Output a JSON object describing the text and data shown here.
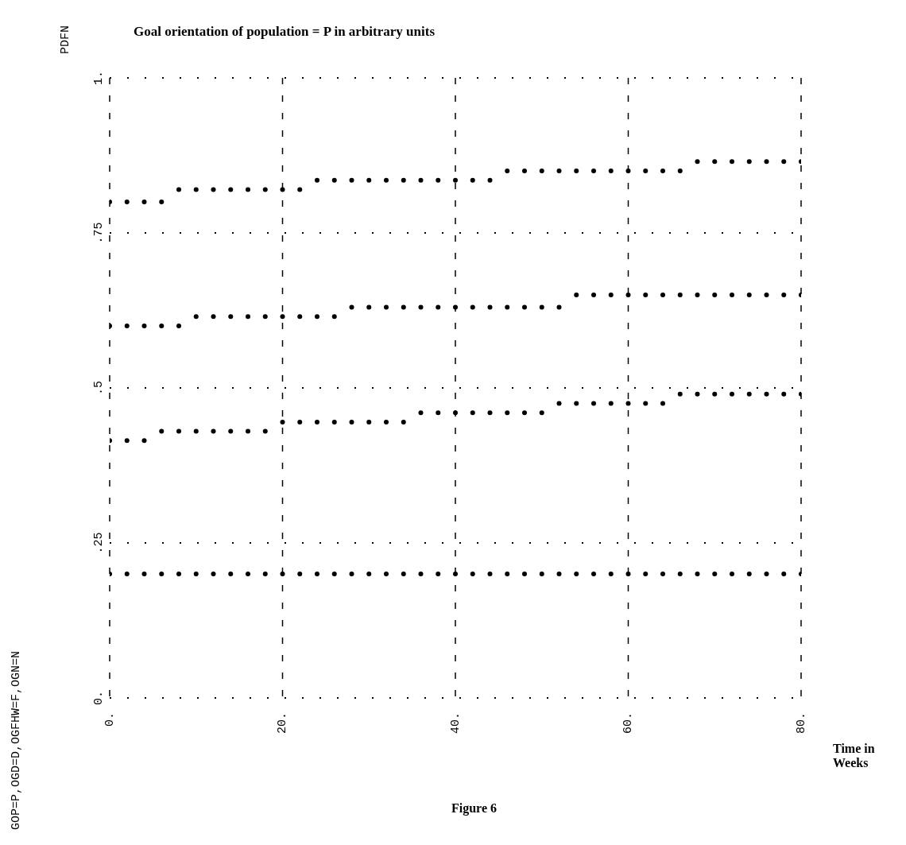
{
  "chart_data": {
    "type": "scatter",
    "title": "Goal orientation of population = P  in arbitrary units",
    "ylabel": "PDFN",
    "xlabel": "Time in Weeks",
    "annotations": [
      "GOP=P,OGD=D,OGFHW=F,OGN=N",
      "Figure 6"
    ],
    "x": [
      0,
      2,
      4,
      6,
      8,
      10,
      12,
      14,
      16,
      18,
      20,
      22,
      24,
      26,
      28,
      30,
      32,
      34,
      36,
      38,
      40,
      42,
      44,
      46,
      48,
      50,
      52,
      54,
      56,
      58,
      60,
      62,
      64,
      66,
      68,
      70,
      72,
      74,
      76,
      78,
      80
    ],
    "series": [
      {
        "color": "#000000",
        "values": [
          0.8,
          0.8,
          0.8,
          0.8,
          0.82,
          0.82,
          0.82,
          0.82,
          0.82,
          0.82,
          0.82,
          0.82,
          0.835,
          0.835,
          0.835,
          0.835,
          0.835,
          0.835,
          0.835,
          0.835,
          0.835,
          0.835,
          0.835,
          0.85,
          0.85,
          0.85,
          0.85,
          0.85,
          0.85,
          0.85,
          0.85,
          0.85,
          0.85,
          0.85,
          0.865,
          0.865,
          0.865,
          0.865,
          0.865,
          0.865,
          0.865
        ]
      },
      {
        "color": "#000000",
        "values": [
          0.6,
          0.6,
          0.6,
          0.6,
          0.6,
          0.615,
          0.615,
          0.615,
          0.615,
          0.615,
          0.615,
          0.615,
          0.615,
          0.615,
          0.63,
          0.63,
          0.63,
          0.63,
          0.63,
          0.63,
          0.63,
          0.63,
          0.63,
          0.63,
          0.63,
          0.63,
          0.63,
          0.65,
          0.65,
          0.65,
          0.65,
          0.65,
          0.65,
          0.65,
          0.65,
          0.65,
          0.65,
          0.65,
          0.65,
          0.65,
          0.65
        ]
      },
      {
        "color": "#000000",
        "values": [
          0.415,
          0.415,
          0.415,
          0.43,
          0.43,
          0.43,
          0.43,
          0.43,
          0.43,
          0.43,
          0.445,
          0.445,
          0.445,
          0.445,
          0.445,
          0.445,
          0.445,
          0.445,
          0.46,
          0.46,
          0.46,
          0.46,
          0.46,
          0.46,
          0.46,
          0.46,
          0.475,
          0.475,
          0.475,
          0.475,
          0.475,
          0.475,
          0.475,
          0.49,
          0.49,
          0.49,
          0.49,
          0.49,
          0.49,
          0.49,
          0.49
        ]
      },
      {
        "color": "#000000",
        "values": [
          0.2,
          0.2,
          0.2,
          0.2,
          0.2,
          0.2,
          0.2,
          0.2,
          0.2,
          0.2,
          0.2,
          0.2,
          0.2,
          0.2,
          0.2,
          0.2,
          0.2,
          0.2,
          0.2,
          0.2,
          0.2,
          0.2,
          0.2,
          0.2,
          0.2,
          0.2,
          0.2,
          0.2,
          0.2,
          0.2,
          0.2,
          0.2,
          0.2,
          0.2,
          0.2,
          0.2,
          0.2,
          0.2,
          0.2,
          0.2,
          0.2
        ]
      }
    ],
    "xlim": [
      0,
      80
    ],
    "xticks": [
      {
        "value": 0,
        "label": "0."
      },
      {
        "value": 20,
        "label": "20."
      },
      {
        "value": 40,
        "label": "40."
      },
      {
        "value": 60,
        "label": "60."
      },
      {
        "value": 80,
        "label": "80."
      }
    ],
    "ylim": [
      0,
      1
    ],
    "yticks": [
      {
        "value": 0,
        "label": "0."
      },
      {
        "value": 0.25,
        "label": ".25"
      },
      {
        "value": 0.5,
        "label": ".5"
      },
      {
        "value": 0.75,
        "label": ".75"
      },
      {
        "value": 1,
        "label": "1."
      }
    ],
    "grid": true,
    "marker": "circle"
  }
}
